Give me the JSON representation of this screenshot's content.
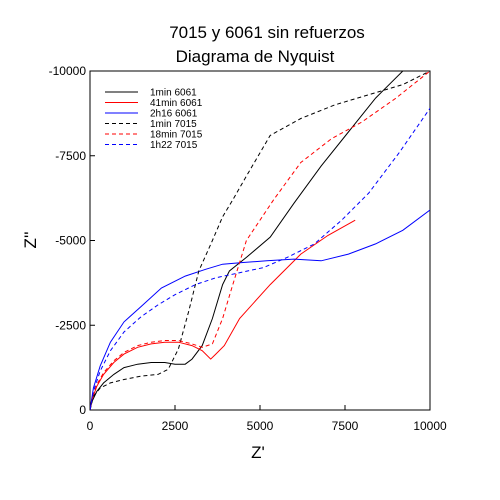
{
  "chart_data": {
    "type": "line",
    "title": "7015 y 6061 sin refuerzos",
    "subtitle": "Diagrama de Nyquist",
    "xlabel": "Z'",
    "ylabel": "Z''",
    "xlim": [
      0,
      10000
    ],
    "ylim": [
      0,
      -10000
    ],
    "xticks": [
      0,
      2500,
      5000,
      7500,
      10000
    ],
    "xtick_labels": [
      "0",
      "2500",
      "5000",
      "7500",
      "10000"
    ],
    "yticks": [
      0,
      -2500,
      -5000,
      -7500,
      -10000
    ],
    "ytick_labels": [
      "0",
      "-2500",
      "-5000",
      "-7500",
      "-10000"
    ],
    "grid": false,
    "legend_position": "top-left",
    "series": [
      {
        "name": "1min 6061",
        "color": "#000000",
        "dash": "solid",
        "x": [
          0,
          60,
          200,
          400,
          700,
          1000,
          1400,
          1800,
          2200,
          2500,
          2800,
          3000,
          3300,
          3600,
          3900,
          4100,
          4600,
          5300,
          6000,
          6800,
          7600,
          8400,
          9200,
          10000
        ],
        "y": [
          0,
          -250,
          -550,
          -800,
          -1050,
          -1250,
          -1350,
          -1400,
          -1400,
          -1350,
          -1350,
          -1500,
          -1900,
          -2700,
          -3700,
          -4100,
          -4500,
          -5100,
          -6100,
          -7200,
          -8200,
          -9200,
          -10000,
          -10600
        ]
      },
      {
        "name": "41min 6061",
        "color": "#ff0000",
        "dash": "solid",
        "x": [
          0,
          60,
          200,
          400,
          700,
          1000,
          1400,
          1800,
          2200,
          2600,
          3000,
          3300,
          3550,
          3700,
          3950,
          4400,
          5300,
          6200,
          7000,
          7800
        ],
        "y": [
          0,
          -300,
          -700,
          -1050,
          -1400,
          -1650,
          -1850,
          -1950,
          -2000,
          -2000,
          -1900,
          -1750,
          -1500,
          -1650,
          -1900,
          -2700,
          -3700,
          -4600,
          -5150,
          -5600
        ]
      },
      {
        "name": "2h16 6061",
        "color": "#0000ff",
        "dash": "solid",
        "x": [
          0,
          100,
          300,
          600,
          1000,
          1500,
          2100,
          2800,
          3400,
          3900,
          4500,
          5200,
          6000,
          6800,
          7600,
          8400,
          9200,
          10000
        ],
        "y": [
          0,
          -650,
          -1300,
          -2000,
          -2600,
          -3050,
          -3600,
          -3950,
          -4150,
          -4300,
          -4350,
          -4400,
          -4450,
          -4400,
          -4600,
          -4900,
          -5300,
          -5900
        ]
      },
      {
        "name": "1min 7015",
        "color": "#000000",
        "dash": "dashed",
        "x": [
          0,
          100,
          300,
          600,
          1000,
          1500,
          2000,
          2300,
          2600,
          2900,
          3200,
          3600,
          3900,
          4200,
          4600,
          5300,
          6200,
          7200,
          8200,
          9200,
          10000
        ],
        "y": [
          0,
          -400,
          -650,
          -800,
          -900,
          -1000,
          -1050,
          -1200,
          -1800,
          -2900,
          -4100,
          -5000,
          -5700,
          -6200,
          -6900,
          -8100,
          -8600,
          -9000,
          -9300,
          -9600,
          -10000
        ]
      },
      {
        "name": "18min 7015",
        "color": "#ff0000",
        "dash": "dashed",
        "x": [
          0,
          60,
          200,
          400,
          700,
          1000,
          1400,
          1800,
          2200,
          2600,
          3000,
          3300,
          3600,
          3900,
          4200,
          4600,
          5400,
          6200,
          7100,
          8000,
          9000,
          10000
        ],
        "y": [
          0,
          -350,
          -750,
          -1100,
          -1450,
          -1700,
          -1900,
          -2000,
          -2050,
          -2050,
          -1950,
          -1850,
          -1950,
          -2700,
          -3700,
          -5000,
          -6200,
          -7300,
          -8000,
          -8500,
          -9200,
          -10000
        ]
      },
      {
        "name": "1h22 7015",
        "color": "#0000ff",
        "dash": "dashed",
        "x": [
          0,
          100,
          300,
          600,
          1000,
          1500,
          2000,
          2500,
          3100,
          3700,
          4400,
          5100,
          5800,
          6600,
          7400,
          8200,
          9100,
          10000
        ],
        "y": [
          0,
          -550,
          -1150,
          -1750,
          -2300,
          -2750,
          -3100,
          -3400,
          -3700,
          -3900,
          -4050,
          -4200,
          -4500,
          -4900,
          -5600,
          -6400,
          -7600,
          -8900
        ]
      }
    ]
  }
}
